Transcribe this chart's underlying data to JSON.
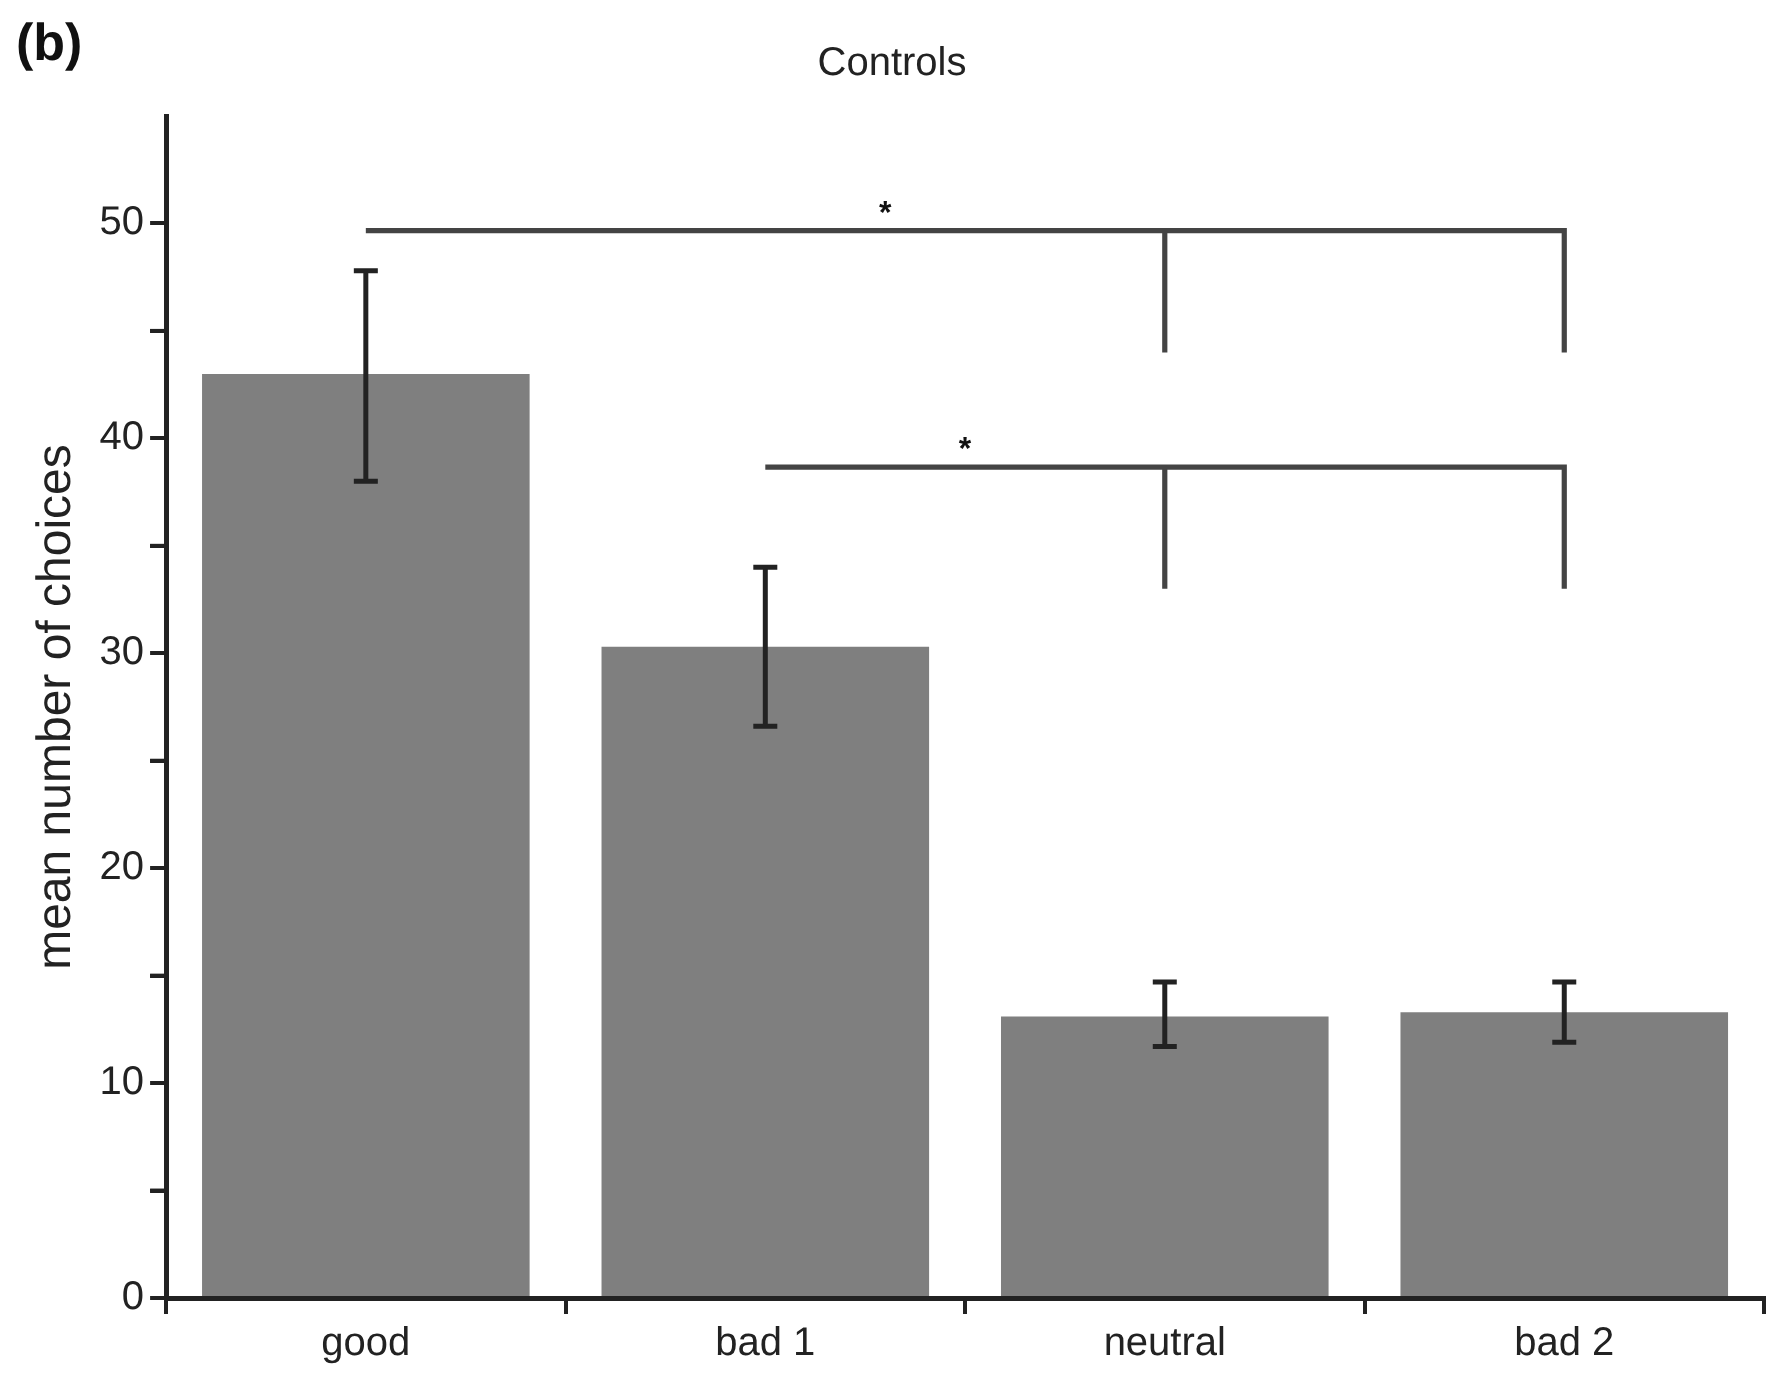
{
  "chart_data": {
    "type": "bar",
    "title": "Controls",
    "ylabel": "mean number of choices",
    "categories": [
      "good",
      "bad 1",
      "neutral",
      "bad 2"
    ],
    "values": [
      43,
      30.3,
      13.1,
      13.3
    ],
    "errors": [
      [
        38,
        47.8
      ],
      [
        26.6,
        34
      ],
      [
        11.7,
        14.7
      ],
      [
        11.9,
        14.7
      ]
    ],
    "color": "#7f7f7f",
    "ylim": [
      0,
      55
    ],
    "yticks": [
      0,
      {
        "value": 5,
        "label": null
      },
      10,
      {
        "value": 15,
        "label": null
      },
      20,
      {
        "value": 25,
        "label": null
      },
      30,
      {
        "value": 35,
        "label": null
      },
      40,
      {
        "value": 45,
        "label": null
      },
      50
    ],
    "grid": false,
    "legend": false,
    "annotations": [
      "(b)",
      "*",
      "*"
    ]
  }
}
